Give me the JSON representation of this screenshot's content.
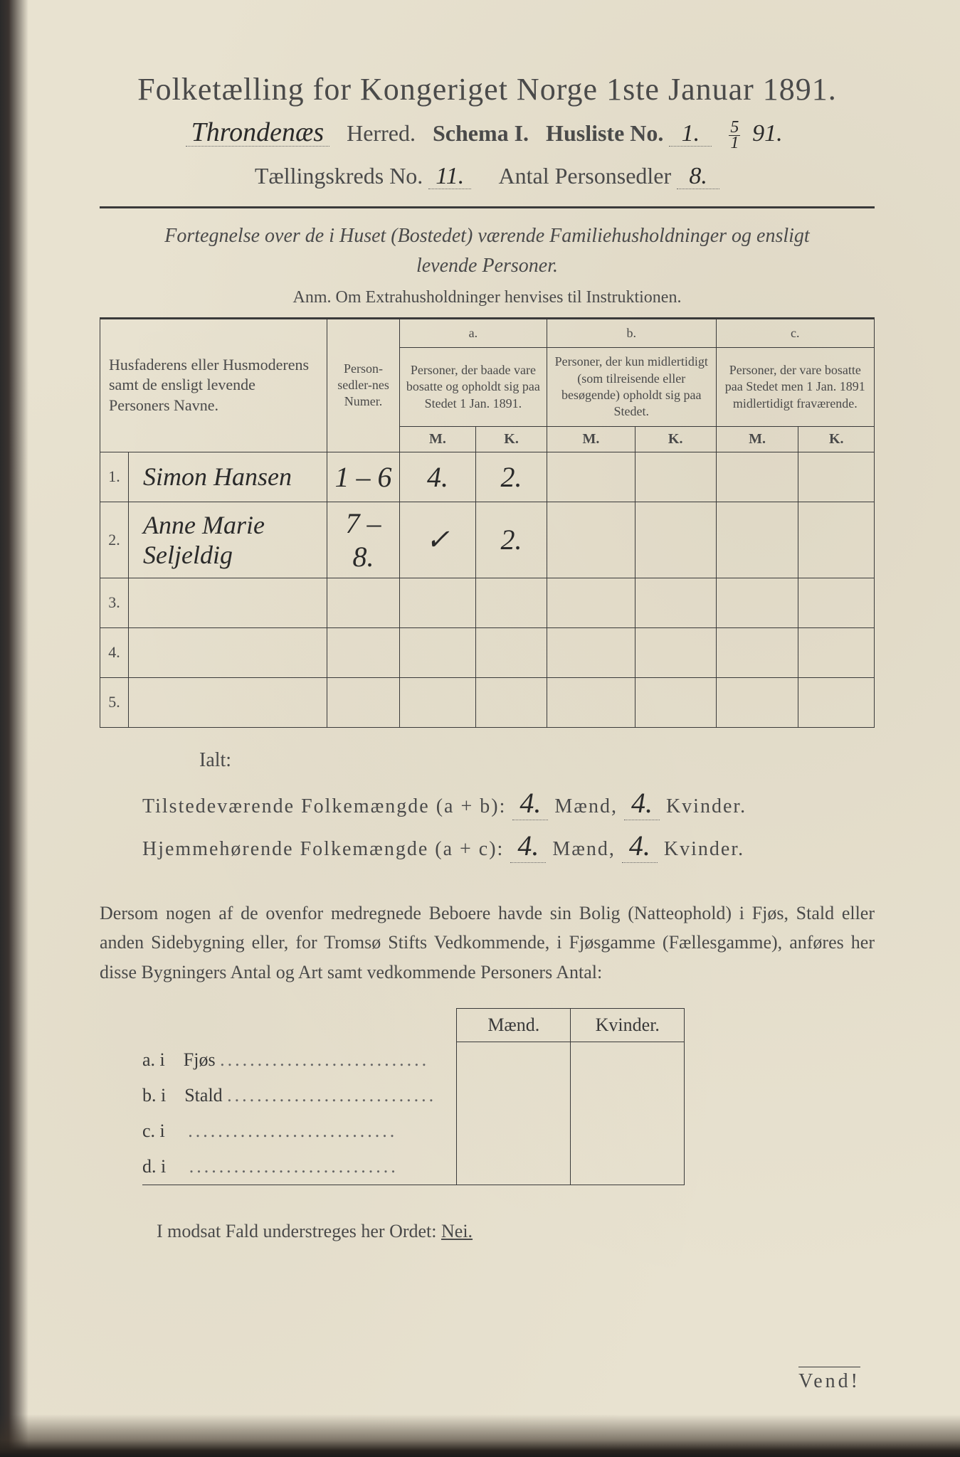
{
  "header": {
    "title": "Folketælling for Kongeriget Norge 1ste Januar 1891.",
    "herred_value": "Throndenæs",
    "herred_label": "Herred.",
    "schema_label": "Schema I.",
    "husliste_label": "Husliste No.",
    "husliste_value": "1.",
    "date_frac_top": "5",
    "date_frac_bot": "1",
    "date_year": "91.",
    "kreds_label": "Tællingskreds No.",
    "kreds_value": "11.",
    "antal_label": "Antal Personsedler",
    "antal_value": "8."
  },
  "subtitle": {
    "line1": "Fortegnelse over de i Huset (Bostedet) værende Familiehusholdninger og ensligt",
    "line2": "levende Personer.",
    "anm": "Anm. Om Extrahusholdninger henvises til Instruktionen."
  },
  "table": {
    "col_name": "Husfaderens eller Husmoderens samt de ensligt levende Personers Navne.",
    "col_numer": "Person-sedler-nes Numer.",
    "col_a_label": "a.",
    "col_a": "Personer, der baade vare bosatte og opholdt sig paa Stedet 1 Jan. 1891.",
    "col_b_label": "b.",
    "col_b": "Personer, der kun midlertidigt (som tilreisende eller besøgende) opholdt sig paa Stedet.",
    "col_c_label": "c.",
    "col_c": "Personer, der vare bosatte paa Stedet men 1 Jan. 1891 midlertidigt fraværende.",
    "mk_m": "M.",
    "mk_k": "K.",
    "rows": [
      {
        "n": "1.",
        "name": "Simon Hansen",
        "numer": "1 – 6",
        "a_m": "4.",
        "a_k": "2.",
        "b_m": "",
        "b_k": "",
        "c_m": "",
        "c_k": ""
      },
      {
        "n": "2.",
        "name": "Anne Marie Seljeldig",
        "numer": "7 – 8.",
        "a_m": "✓",
        "a_k": "2.",
        "b_m": "",
        "b_k": "",
        "c_m": "",
        "c_k": ""
      },
      {
        "n": "3.",
        "name": "",
        "numer": "",
        "a_m": "",
        "a_k": "",
        "b_m": "",
        "b_k": "",
        "c_m": "",
        "c_k": ""
      },
      {
        "n": "4.",
        "name": "",
        "numer": "",
        "a_m": "",
        "a_k": "",
        "b_m": "",
        "b_k": "",
        "c_m": "",
        "c_k": ""
      },
      {
        "n": "5.",
        "name": "",
        "numer": "",
        "a_m": "",
        "a_k": "",
        "b_m": "",
        "b_k": "",
        "c_m": "",
        "c_k": ""
      }
    ]
  },
  "totals": {
    "ialt": "Ialt:",
    "line1_label": "Tilstedeværende Folkemængde (a + b):",
    "line2_label": "Hjemmehørende Folkemængde (a + c):",
    "maend": "Mænd,",
    "kvinder": "Kvinder.",
    "l1_m": "4.",
    "l1_k": "4.",
    "l2_m": "4.",
    "l2_k": "4."
  },
  "para": "Dersom nogen af de ovenfor medregnede Beboere havde sin Bolig (Natteophold) i Fjøs, Stald eller anden Sidebygning eller, for Tromsø Stifts Vedkommende, i Fjøsgamme (Fællesgamme), anføres her disse Bygningers Antal og Art samt vedkommende Personers Antal:",
  "outbuildings": {
    "maend": "Mænd.",
    "kvinder": "Kvinder.",
    "rows": [
      {
        "lbl": "a.  i",
        "name": "Fjøs"
      },
      {
        "lbl": "b.  i",
        "name": "Stald"
      },
      {
        "lbl": "c.  i",
        "name": ""
      },
      {
        "lbl": "d.  i",
        "name": ""
      }
    ]
  },
  "nei": {
    "text_before": "I modsat Fald understreges her Ordet: ",
    "word": "Nei."
  },
  "vend": "Vend!"
}
